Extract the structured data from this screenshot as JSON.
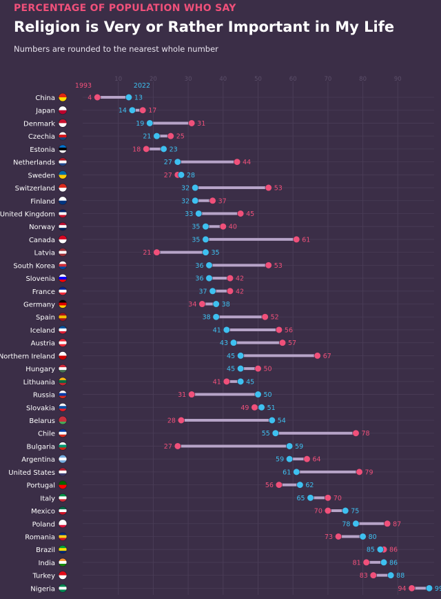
{
  "header": {
    "kicker": "PERCENTAGE OF POPULATION WHO SAY",
    "title": "Religion is Very or Rather Important in My Life",
    "subtitle": "Numbers are rounded to the nearest whole number"
  },
  "colors": {
    "background": "#3b2e47",
    "series_1993": "#f0507a",
    "series_2022": "#3ec0f0",
    "connector": "#b7a4c8",
    "grid": "#4a3d57",
    "tick": "#5c4f6a"
  },
  "chart_data": {
    "type": "dumbbell",
    "title": "Religion is Very or Rather Important in My Life",
    "xlabel": "",
    "ylabel": "",
    "xlim": [
      0,
      100
    ],
    "x_ticks": [
      10,
      20,
      30,
      40,
      50,
      60,
      70,
      80,
      90
    ],
    "grid": true,
    "legend": [
      "1993",
      "2022"
    ],
    "legend_placement": "top-left",
    "series": [
      {
        "name": "1993",
        "key": "v1993"
      },
      {
        "name": "2022",
        "key": "v2022"
      }
    ],
    "categories": [
      "China",
      "Japan",
      "Denmark",
      "Czechia",
      "Estonia",
      "Netherlands",
      "Sweden",
      "Switzerland",
      "Finland",
      "United Kingdom",
      "Norway",
      "Canada",
      "Latvia",
      "South Korea",
      "Slovenia",
      "France",
      "Germany",
      "Spain",
      "Iceland",
      "Austria",
      "Northern Ireland",
      "Hungary",
      "Lithuania",
      "Russia",
      "Slovakia",
      "Belarus",
      "Chile",
      "Bulgaria",
      "Argentina",
      "United States",
      "Portugal",
      "Italy",
      "Mexico",
      "Poland",
      "Romania",
      "Brazil",
      "India",
      "Turkey",
      "Nigeria"
    ],
    "v1993": [
      4,
      17,
      31,
      25,
      18,
      44,
      27,
      53,
      37,
      45,
      40,
      61,
      21,
      53,
      42,
      42,
      34,
      52,
      56,
      57,
      67,
      50,
      41,
      31,
      49,
      28,
      78,
      27,
      64,
      79,
      56,
      70,
      70,
      87,
      73,
      86,
      81,
      83,
      94
    ],
    "v2022": [
      13,
      14,
      19,
      21,
      23,
      27,
      28,
      32,
      32,
      33,
      35,
      35,
      35,
      36,
      36,
      37,
      38,
      38,
      41,
      43,
      45,
      45,
      45,
      50,
      51,
      54,
      55,
      59,
      59,
      61,
      62,
      65,
      75,
      78,
      80,
      85,
      86,
      88,
      99
    ]
  },
  "flags": {
    "China": [
      "#de2910",
      "#ffde00"
    ],
    "Japan": [
      "#ffffff",
      "#bc002d"
    ],
    "Denmark": [
      "#c8102e",
      "#ffffff"
    ],
    "Czechia": [
      "#ffffff",
      "#d7141a",
      "#11457e"
    ],
    "Estonia": [
      "#0072ce",
      "#000000",
      "#ffffff"
    ],
    "Netherlands": [
      "#ae1c28",
      "#ffffff",
      "#21468b"
    ],
    "Sweden": [
      "#006aa7",
      "#fecc00"
    ],
    "Switzerland": [
      "#da291c",
      "#ffffff"
    ],
    "Finland": [
      "#ffffff",
      "#003580"
    ],
    "United Kingdom": [
      "#012169",
      "#ffffff",
      "#c8102e"
    ],
    "Norway": [
      "#ba0c2f",
      "#ffffff",
      "#00205b"
    ],
    "Canada": [
      "#d80621",
      "#ffffff"
    ],
    "Latvia": [
      "#9e3039",
      "#ffffff",
      "#9e3039"
    ],
    "South Korea": [
      "#ffffff",
      "#cd2e3a",
      "#0047a0"
    ],
    "Slovenia": [
      "#ffffff",
      "#0000ff",
      "#ff0000"
    ],
    "France": [
      "#002395",
      "#ffffff",
      "#ed2939"
    ],
    "Germany": [
      "#000000",
      "#dd0000",
      "#ffce00"
    ],
    "Spain": [
      "#aa151b",
      "#f1bf00",
      "#aa151b"
    ],
    "Iceland": [
      "#02529c",
      "#ffffff",
      "#dc1e35"
    ],
    "Austria": [
      "#ed2939",
      "#ffffff",
      "#ed2939"
    ],
    "Northern Ireland": [
      "#ffffff",
      "#cc0000"
    ],
    "Hungary": [
      "#ce2939",
      "#ffffff",
      "#477050"
    ],
    "Lithuania": [
      "#fdb913",
      "#006a44",
      "#c1272d"
    ],
    "Russia": [
      "#ffffff",
      "#0039a6",
      "#d52b1e"
    ],
    "Slovakia": [
      "#ffffff",
      "#0b4ea2",
      "#ee1c25"
    ],
    "Belarus": [
      "#c8313e",
      "#c8313e",
      "#4aa657"
    ],
    "Chile": [
      "#0039a6",
      "#ffffff",
      "#d52b1e"
    ],
    "Bulgaria": [
      "#ffffff",
      "#00966e",
      "#d62612"
    ],
    "Argentina": [
      "#74acdf",
      "#ffffff",
      "#74acdf"
    ],
    "United States": [
      "#b22234",
      "#ffffff",
      "#3c3b6e"
    ],
    "Portugal": [
      "#006600",
      "#ff0000"
    ],
    "Italy": [
      "#009246",
      "#ffffff",
      "#ce2b37"
    ],
    "Mexico": [
      "#006847",
      "#ffffff",
      "#ce1126"
    ],
    "Poland": [
      "#ffffff",
      "#ffffff",
      "#dc143c"
    ],
    "Romania": [
      "#002b7f",
      "#fcd116",
      "#ce1126"
    ],
    "Brazil": [
      "#009c3b",
      "#ffdf00",
      "#002776"
    ],
    "India": [
      "#ff9933",
      "#ffffff",
      "#138808"
    ],
    "Turkey": [
      "#e30a17",
      "#ffffff"
    ],
    "Nigeria": [
      "#008751",
      "#ffffff",
      "#008751"
    ]
  }
}
